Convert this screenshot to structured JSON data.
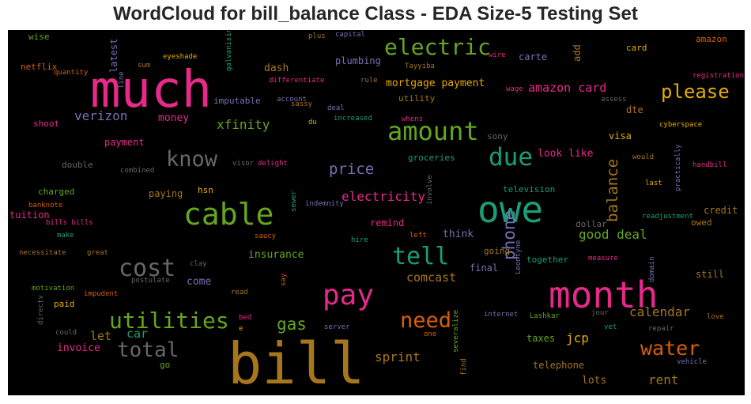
{
  "chart_data": {
    "type": "wordcloud",
    "title": "WordCloud for bill_balance Class - EDA Size-5 Testing Set",
    "background": "#000000",
    "colors": {
      "magenta": "#e7298a",
      "green": "#66a61e",
      "teal": "#1b9e77",
      "orange": "#d95f02",
      "purple": "#7570b3",
      "gold": "#e6ab02",
      "brown": "#a6761d",
      "gray": "#666666"
    },
    "words": [
      {
        "text": "bill",
        "color": "brown",
        "weight": 72
      },
      {
        "text": "much",
        "color": "magenta",
        "weight": 64
      },
      {
        "text": "month",
        "color": "magenta",
        "weight": 46
      },
      {
        "text": "owe",
        "color": "teal",
        "weight": 46
      },
      {
        "text": "cable",
        "color": "green",
        "weight": 38
      },
      {
        "text": "pay",
        "color": "magenta",
        "weight": 36
      },
      {
        "text": "amount",
        "color": "green",
        "weight": 32
      },
      {
        "text": "due",
        "color": "teal",
        "weight": 31
      },
      {
        "text": "tell",
        "color": "teal",
        "weight": 30
      },
      {
        "text": "cost",
        "color": "gray",
        "weight": 30
      },
      {
        "text": "electric",
        "color": "green",
        "weight": 28
      },
      {
        "text": "utilities",
        "color": "green",
        "weight": 28
      },
      {
        "text": "need",
        "color": "orange",
        "weight": 27
      },
      {
        "text": "know",
        "color": "gray",
        "weight": 27
      },
      {
        "text": "total",
        "color": "gray",
        "weight": 26
      },
      {
        "text": "water",
        "color": "orange",
        "weight": 25
      },
      {
        "text": "please",
        "color": "gold",
        "weight": 24
      },
      {
        "text": "phone",
        "color": "purple",
        "weight": 21
      },
      {
        "text": "gas",
        "color": "green",
        "weight": 21
      },
      {
        "text": "balance",
        "color": "brown",
        "weight": 19
      },
      {
        "text": "price",
        "color": "purple",
        "weight": 19
      },
      {
        "text": "electricity",
        "color": "magenta",
        "weight": 16
      },
      {
        "text": "good deal",
        "color": "green",
        "weight": 16
      },
      {
        "text": "verizon",
        "color": "purple",
        "weight": 16
      },
      {
        "text": "sprint",
        "color": "brown",
        "weight": 16
      },
      {
        "text": "calendar",
        "color": "brown",
        "weight": 16
      },
      {
        "text": "xfinity",
        "color": "green",
        "weight": 16
      },
      {
        "text": "jcp",
        "color": "gold",
        "weight": 16
      },
      {
        "text": "rent",
        "color": "brown",
        "weight": 16
      },
      {
        "text": "amazon card",
        "color": "magenta",
        "weight": 15
      },
      {
        "text": "comcast",
        "color": "brown",
        "weight": 15
      },
      {
        "text": "car",
        "color": "teal",
        "weight": 15
      },
      {
        "text": "let",
        "color": "brown",
        "weight": 15
      },
      {
        "text": "mortgage payment",
        "color": "gold",
        "weight": 13
      },
      {
        "text": "dash",
        "color": "brown",
        "weight": 13
      },
      {
        "text": "invoice",
        "color": "magenta",
        "weight": 13
      },
      {
        "text": "insurance",
        "color": "green",
        "weight": 13
      },
      {
        "text": "money",
        "color": "magenta",
        "weight": 13
      },
      {
        "text": "think",
        "color": "purple",
        "weight": 13
      },
      {
        "text": "come",
        "color": "purple",
        "weight": 13
      },
      {
        "text": "look like",
        "color": "magenta",
        "weight": 13
      },
      {
        "text": "lots",
        "color": "brown",
        "weight": 13
      },
      {
        "text": "telephone",
        "color": "brown",
        "weight": 12
      },
      {
        "text": "payment",
        "color": "magenta",
        "weight": 12
      },
      {
        "text": "paying",
        "color": "brown",
        "weight": 12
      },
      {
        "text": "tuition",
        "color": "magenta",
        "weight": 12
      },
      {
        "text": "remind",
        "color": "magenta",
        "weight": 12
      },
      {
        "text": "visa",
        "color": "gold",
        "weight": 12
      },
      {
        "text": "dte",
        "color": "brown",
        "weight": 12
      },
      {
        "text": "still",
        "color": "brown",
        "weight": 12
      },
      {
        "text": "latest",
        "color": "purple",
        "weight": 12
      },
      {
        "text": "add",
        "color": "brown",
        "weight": 12
      },
      {
        "text": "final",
        "color": "purple",
        "weight": 12
      },
      {
        "text": "taxes",
        "color": "green",
        "weight": 12
      },
      {
        "text": "plumbing",
        "color": "purple",
        "weight": 12
      },
      {
        "text": "carte",
        "color": "purple",
        "weight": 12
      },
      {
        "text": "credit",
        "color": "brown",
        "weight": 12
      },
      {
        "text": "hsn",
        "color": "gold",
        "weight": 11
      },
      {
        "text": "go",
        "color": "green",
        "weight": 11
      },
      {
        "text": "paid",
        "color": "gold",
        "weight": 11
      },
      {
        "text": "utility",
        "color": "brown",
        "weight": 11
      },
      {
        "text": "double",
        "color": "gray",
        "weight": 11
      },
      {
        "text": "charged",
        "color": "green",
        "weight": 11
      },
      {
        "text": "together",
        "color": "teal",
        "weight": 11
      },
      {
        "text": "card",
        "color": "gold",
        "weight": 11
      },
      {
        "text": "netflix",
        "color": "orange",
        "weight": 11
      },
      {
        "text": "owed",
        "color": "brown",
        "weight": 11
      },
      {
        "text": "wise",
        "color": "green",
        "weight": 11
      },
      {
        "text": "amazon",
        "color": "orange",
        "weight": 11
      },
      {
        "text": "imputable",
        "color": "purple",
        "weight": 11
      },
      {
        "text": "sony",
        "color": "gray",
        "weight": 11
      },
      {
        "text": "shoot",
        "color": "magenta",
        "weight": 11
      },
      {
        "text": "going",
        "color": "brown",
        "weight": 11
      },
      {
        "text": "dollar",
        "color": "gray",
        "weight": 11
      },
      {
        "text": "groceries",
        "color": "teal",
        "weight": 11
      },
      {
        "text": "television",
        "color": "teal",
        "weight": 11
      },
      {
        "text": "love",
        "color": "brown",
        "weight": 9
      },
      {
        "text": "vehicle",
        "color": "purple",
        "weight": 9
      },
      {
        "text": "repair",
        "color": "gray",
        "weight": 9
      },
      {
        "text": "vet",
        "color": "teal",
        "weight": 9
      },
      {
        "text": "jour",
        "color": "gray",
        "weight": 9
      },
      {
        "text": "measure",
        "color": "magenta",
        "weight": 9
      },
      {
        "text": "readjustment",
        "color": "teal",
        "weight": 9
      },
      {
        "text": "last",
        "color": "gold",
        "weight": 9
      },
      {
        "text": "handbill",
        "color": "magenta",
        "weight": 9
      },
      {
        "text": "would",
        "color": "brown",
        "weight": 9
      },
      {
        "text": "cyberspace",
        "color": "gold",
        "weight": 9
      },
      {
        "text": "assess",
        "color": "gray",
        "weight": 9
      },
      {
        "text": "registration",
        "color": "magenta",
        "weight": 9
      },
      {
        "text": "wage",
        "color": "magenta",
        "weight": 9
      },
      {
        "text": "wire",
        "color": "magenta",
        "weight": 9
      },
      {
        "text": "Tayyiba",
        "color": "brown",
        "weight": 9
      },
      {
        "text": "rule",
        "color": "brown",
        "weight": 9
      },
      {
        "text": "whens",
        "color": "magenta",
        "weight": 9
      },
      {
        "text": "capital",
        "color": "purple",
        "weight": 9
      },
      {
        "text": "plus",
        "color": "brown",
        "weight": 9
      },
      {
        "text": "deal",
        "color": "purple",
        "weight": 9
      },
      {
        "text": "increased",
        "color": "teal",
        "weight": 9
      },
      {
        "text": "du",
        "color": "gold",
        "weight": 9
      },
      {
        "text": "sassy",
        "color": "brown",
        "weight": 9
      },
      {
        "text": "account",
        "color": "purple",
        "weight": 9
      },
      {
        "text": "differentiate",
        "color": "magenta",
        "weight": 9
      },
      {
        "text": "eyeshade",
        "color": "gold",
        "weight": 9
      },
      {
        "text": "sum",
        "color": "brown",
        "weight": 9
      },
      {
        "text": "quantity",
        "color": "orange",
        "weight": 9
      },
      {
        "text": "visor",
        "color": "gray",
        "weight": 9
      },
      {
        "text": "delight",
        "color": "magenta",
        "weight": 9
      },
      {
        "text": "combined",
        "color": "gray",
        "weight": 9
      },
      {
        "text": "indemnity",
        "color": "purple",
        "weight": 9
      },
      {
        "text": "banknote",
        "color": "orange",
        "weight": 9
      },
      {
        "text": "bills bills",
        "color": "magenta",
        "weight": 9
      },
      {
        "text": "make",
        "color": "teal",
        "weight": 9
      },
      {
        "text": "saucy",
        "color": "orange",
        "weight": 9
      },
      {
        "text": "hire",
        "color": "teal",
        "weight": 9
      },
      {
        "text": "left",
        "color": "orange",
        "weight": 9
      },
      {
        "text": "necessitate",
        "color": "brown",
        "weight": 9
      },
      {
        "text": "great",
        "color": "brown",
        "weight": 9
      },
      {
        "text": "clay",
        "color": "gray",
        "weight": 9
      },
      {
        "text": "postulate",
        "color": "gray",
        "weight": 9
      },
      {
        "text": "motivation",
        "color": "green",
        "weight": 9
      },
      {
        "text": "impudent",
        "color": "orange",
        "weight": 9
      },
      {
        "text": "read",
        "color": "brown",
        "weight": 9
      },
      {
        "text": "bed",
        "color": "magenta",
        "weight": 9
      },
      {
        "text": "e",
        "color": "gold",
        "weight": 9
      },
      {
        "text": "server",
        "color": "purple",
        "weight": 9
      },
      {
        "text": "one",
        "color": "orange",
        "weight": 9
      },
      {
        "text": "internet",
        "color": "purple",
        "weight": 9
      },
      {
        "text": "Lashkar",
        "color": "green",
        "weight": 9
      },
      {
        "text": "could",
        "color": "gray",
        "weight": 9
      },
      {
        "text": "galvanising",
        "color": "teal",
        "weight": 9
      },
      {
        "text": "line",
        "color": "purple",
        "weight": 9
      },
      {
        "text": "sewer",
        "color": "teal",
        "weight": 9
      },
      {
        "text": "involve",
        "color": "gray",
        "weight": 9
      },
      {
        "text": "say",
        "color": "orange",
        "weight": 9
      },
      {
        "text": "directv",
        "color": "gray",
        "weight": 9
      },
      {
        "text": "severalize",
        "color": "green",
        "weight": 9
      },
      {
        "text": "find",
        "color": "brown",
        "weight": 9
      },
      {
        "text": "Leontyne",
        "color": "purple",
        "weight": 9
      },
      {
        "text": "domain",
        "color": "purple",
        "weight": 9
      },
      {
        "text": "practically",
        "color": "purple",
        "weight": 9
      }
    ]
  }
}
